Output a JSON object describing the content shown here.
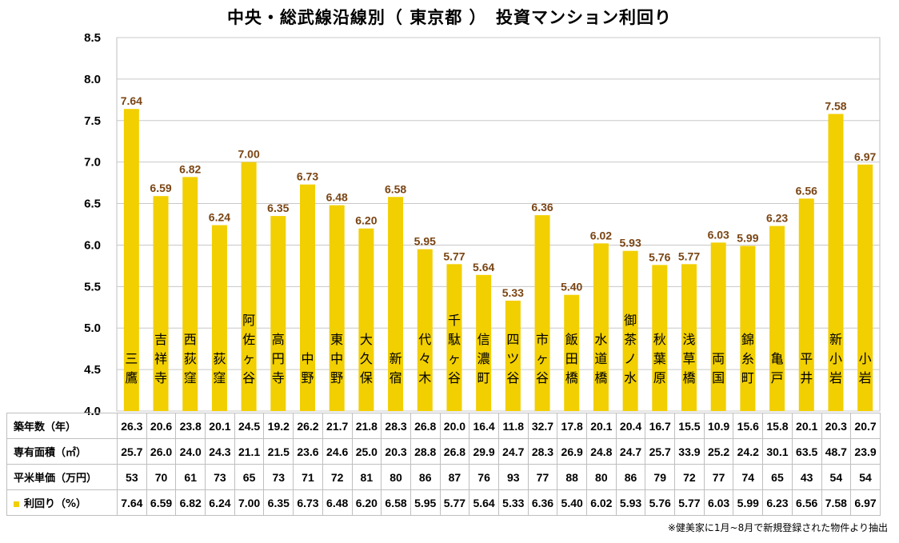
{
  "chart_data": {
    "type": "bar",
    "title": "中央・総武線沿線別（ 東京都 ）　投資マンション利回り",
    "categories": [
      "三鷹",
      "吉祥寺",
      "西荻窪",
      "荻窪",
      "阿佐ヶ谷",
      "高円寺",
      "中野",
      "東中野",
      "大久保",
      "新宿",
      "代々木",
      "千駄ヶ谷",
      "信濃町",
      "四ツ谷",
      "市ヶ谷",
      "飯田橋",
      "水道橋",
      "御茶ノ水",
      "秋葉原",
      "浅草橋",
      "両国",
      "錦糸町",
      "亀戸",
      "平井",
      "新小岩",
      "小岩"
    ],
    "values": [
      7.64,
      6.59,
      6.82,
      6.24,
      7.0,
      6.35,
      6.73,
      6.48,
      6.2,
      6.58,
      5.95,
      5.77,
      5.64,
      5.33,
      6.36,
      5.4,
      6.02,
      5.93,
      5.76,
      5.77,
      6.03,
      5.99,
      6.23,
      6.56,
      7.58,
      6.97
    ],
    "value_labels": [
      "7.64",
      "6.59",
      "6.82",
      "6.24",
      "7.00",
      "6.35",
      "6.73",
      "6.48",
      "6.20",
      "6.58",
      "5.95",
      "5.77",
      "5.64",
      "5.33",
      "6.36",
      "5.40",
      "6.02",
      "5.93",
      "5.76",
      "5.77",
      "6.03",
      "5.99",
      "6.23",
      "6.56",
      "7.58",
      "6.97"
    ],
    "ylim": [
      4.0,
      8.5
    ],
    "yticks": [
      "4.0",
      "4.5",
      "5.0",
      "5.5",
      "6.0",
      "6.5",
      "7.0",
      "7.5",
      "8.0",
      "8.5"
    ],
    "grid": true,
    "bar_color": "#f2cf00",
    "label_color": "#7a4514",
    "table": {
      "rows": [
        {
          "label": "築年数（年）",
          "legend": false,
          "values": [
            "26.3",
            "20.6",
            "23.8",
            "20.1",
            "24.5",
            "19.2",
            "26.2",
            "21.7",
            "21.8",
            "28.3",
            "26.8",
            "20.0",
            "16.4",
            "11.8",
            "32.7",
            "17.8",
            "20.1",
            "20.4",
            "16.7",
            "15.5",
            "10.9",
            "15.6",
            "15.8",
            "20.1",
            "20.3",
            "20.7"
          ]
        },
        {
          "label": "専有面積（㎡）",
          "legend": false,
          "values": [
            "25.7",
            "26.0",
            "24.0",
            "24.3",
            "21.1",
            "21.5",
            "23.6",
            "24.6",
            "25.0",
            "20.3",
            "28.8",
            "26.8",
            "29.9",
            "24.7",
            "28.3",
            "26.9",
            "24.8",
            "24.7",
            "25.7",
            "33.9",
            "25.2",
            "24.2",
            "30.1",
            "63.5",
            "48.7",
            "23.9"
          ]
        },
        {
          "label": "平米単価（万円）",
          "legend": false,
          "values": [
            "53",
            "70",
            "61",
            "73",
            "65",
            "73",
            "71",
            "72",
            "81",
            "80",
            "86",
            "87",
            "76",
            "93",
            "77",
            "88",
            "80",
            "86",
            "79",
            "72",
            "77",
            "74",
            "65",
            "43",
            "54",
            "54"
          ]
        },
        {
          "label": "利回り（%）",
          "legend": true,
          "values": [
            "7.64",
            "6.59",
            "6.82",
            "6.24",
            "7.00",
            "6.35",
            "6.73",
            "6.48",
            "6.20",
            "6.58",
            "5.95",
            "5.77",
            "5.64",
            "5.33",
            "6.36",
            "5.40",
            "6.02",
            "5.93",
            "5.76",
            "5.77",
            "6.03",
            "5.99",
            "6.23",
            "6.56",
            "7.58",
            "6.97"
          ]
        }
      ]
    }
  },
  "footnote": "※健美家に1月~8月で新規登録された物件より抽出"
}
